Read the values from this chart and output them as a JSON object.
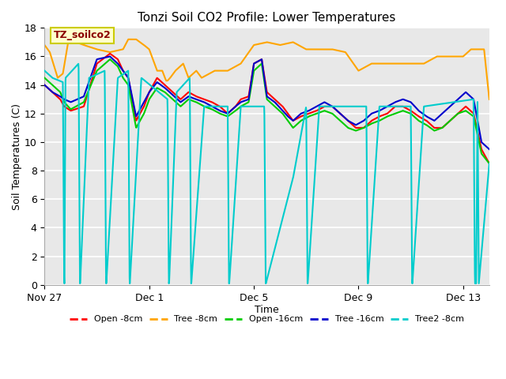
{
  "title": "Tonzi Soil CO2 Profile: Lower Temperatures",
  "xlabel": "Time",
  "ylabel": "Soil Temperatures (C)",
  "ylim": [
    0,
    18
  ],
  "xlim": [
    0,
    17
  ],
  "annotation_text": "TZ_soilco2",
  "annotation_color": "#8B0000",
  "annotation_bg": "#FFFFCC",
  "annotation_border": "#CCCC00",
  "bg_color": "#E8E8E8",
  "series": [
    {
      "label": "Open -8cm",
      "color": "#FF0000"
    },
    {
      "label": "Tree -8cm",
      "color": "#FFA500"
    },
    {
      "label": "Open -16cm",
      "color": "#00CC00"
    },
    {
      "label": "Tree -16cm",
      "color": "#0000CC"
    },
    {
      "label": "Tree2 -8cm",
      "color": "#00CCCC"
    }
  ],
  "xtick_labels": [
    "Nov 27",
    "Dec 1",
    "Dec 5",
    "Dec 9",
    "Dec 13"
  ],
  "xtick_positions": [
    0,
    4,
    8,
    12,
    16
  ],
  "ytick_positions": [
    0,
    2,
    4,
    6,
    8,
    10,
    12,
    14,
    16,
    18
  ],
  "grid_color": "#FFFFFF",
  "cyan_t": [
    0,
    0.3,
    0.7,
    0.75,
    0.76,
    0.8,
    1.3,
    1.35,
    1.36,
    1.7,
    2.3,
    2.35,
    2.36,
    2.8,
    3.2,
    3.25,
    3.26,
    3.7,
    4.7,
    4.75,
    4.76,
    5.05,
    5.55,
    5.6,
    5.61,
    6.1,
    7.0,
    7.05,
    7.06,
    7.5,
    8.4,
    8.45,
    8.46,
    9.5,
    10.0,
    10.05,
    10.06,
    10.5,
    12.3,
    12.35,
    12.36,
    12.8,
    14.0,
    14.05,
    14.06,
    14.5,
    16.4,
    16.45,
    16.5,
    16.55,
    16.6,
    17
  ],
  "cyan_v": [
    15,
    14.5,
    14.2,
    0.1,
    0.1,
    14.5,
    15.5,
    0.1,
    0.1,
    14.5,
    15,
    0.1,
    0.1,
    14.5,
    15,
    0.1,
    0.1,
    14.5,
    13,
    0.1,
    0.1,
    13.5,
    14.5,
    0.1,
    0.1,
    12.5,
    12.5,
    0.1,
    0.1,
    12.5,
    12.5,
    0.1,
    0.1,
    7.5,
    12.5,
    0.1,
    0.1,
    12.5,
    12.5,
    0.1,
    0.1,
    12.5,
    12.5,
    0.1,
    0.1,
    12.5,
    13,
    0.1,
    0.1,
    13,
    0.1,
    8.5
  ],
  "orange_t": [
    0,
    0.2,
    0.5,
    0.7,
    0.9,
    1.0,
    1.2,
    1.5,
    2.0,
    2.5,
    3.0,
    3.2,
    3.5,
    3.8,
    4.0,
    4.3,
    4.5,
    4.6,
    4.65,
    4.7,
    4.8,
    5.0,
    5.3,
    5.5,
    5.8,
    6.0,
    6.5,
    7.0,
    7.5,
    8.0,
    8.5,
    9.0,
    9.5,
    10.0,
    10.5,
    11.0,
    11.5,
    12.0,
    12.5,
    13.0,
    13.5,
    14.0,
    14.5,
    15.0,
    15.5,
    16.0,
    16.3,
    16.5,
    16.8,
    17.0
  ],
  "orange_v": [
    16.8,
    16.3,
    14.5,
    14.8,
    17.0,
    17.2,
    17.0,
    16.8,
    16.5,
    16.3,
    16.5,
    17.2,
    17.2,
    16.8,
    16.5,
    15.0,
    15.0,
    14.5,
    14.3,
    14.3,
    14.5,
    15.0,
    15.5,
    14.5,
    15.0,
    14.5,
    15.0,
    15.0,
    15.5,
    16.8,
    17.0,
    16.8,
    17.0,
    16.5,
    16.5,
    16.5,
    16.3,
    15.0,
    15.5,
    15.5,
    15.5,
    15.5,
    15.5,
    16.0,
    16.0,
    16.0,
    16.5,
    16.5,
    16.5,
    13.0
  ],
  "red_t": [
    0,
    0.3,
    0.6,
    0.75,
    1.0,
    1.5,
    2.0,
    2.5,
    2.8,
    3.0,
    3.2,
    3.5,
    3.8,
    4.0,
    4.3,
    4.6,
    4.9,
    5.2,
    5.5,
    5.8,
    6.1,
    6.4,
    6.7,
    7.0,
    7.3,
    7.5,
    7.8,
    8.0,
    8.3,
    8.5,
    8.8,
    9.1,
    9.3,
    9.5,
    9.8,
    10.1,
    10.4,
    10.7,
    11.0,
    11.3,
    11.6,
    11.9,
    12.2,
    12.5,
    12.8,
    13.1,
    13.4,
    13.7,
    14.0,
    14.3,
    14.6,
    14.9,
    15.2,
    15.5,
    15.8,
    16.1,
    16.4,
    16.7,
    17.0
  ],
  "red_v": [
    14,
    13.5,
    13,
    12.5,
    12.2,
    12.5,
    15.5,
    16.2,
    15.8,
    15.0,
    14.5,
    11.5,
    12.5,
    13.5,
    14.5,
    14.0,
    13.5,
    13.0,
    13.5,
    13.2,
    13.0,
    12.8,
    12.5,
    12.0,
    12.5,
    13.0,
    13.2,
    15.5,
    15.8,
    13.5,
    13.0,
    12.5,
    12.0,
    11.5,
    11.8,
    12.0,
    12.2,
    12.5,
    12.5,
    12.0,
    11.5,
    11.0,
    11.0,
    11.5,
    11.8,
    12.0,
    12.5,
    12.5,
    12.2,
    11.8,
    11.5,
    11.0,
    11.0,
    11.5,
    12.0,
    12.5,
    12.0,
    9.5,
    8.5
  ],
  "green_t": [
    0,
    0.3,
    0.6,
    0.75,
    1.0,
    1.5,
    2.0,
    2.5,
    2.8,
    3.0,
    3.2,
    3.5,
    3.8,
    4.0,
    4.3,
    4.6,
    4.9,
    5.2,
    5.5,
    5.8,
    6.1,
    6.4,
    6.7,
    7.0,
    7.3,
    7.5,
    7.8,
    8.0,
    8.3,
    8.5,
    8.8,
    9.1,
    9.3,
    9.5,
    9.8,
    10.1,
    10.4,
    10.7,
    11.0,
    11.3,
    11.6,
    11.9,
    12.2,
    12.5,
    12.8,
    13.1,
    13.4,
    13.7,
    14.0,
    14.3,
    14.6,
    14.9,
    15.2,
    15.5,
    15.8,
    16.1,
    16.4,
    16.7,
    17.0
  ],
  "green_v": [
    14.5,
    14.0,
    13.5,
    12.8,
    12.3,
    12.8,
    15.0,
    15.8,
    15.3,
    14.5,
    14.0,
    11.0,
    12.0,
    13.0,
    13.8,
    13.5,
    13.0,
    12.5,
    13.0,
    12.8,
    12.5,
    12.3,
    12.0,
    11.8,
    12.2,
    12.5,
    12.8,
    15.0,
    15.5,
    13.0,
    12.5,
    12.0,
    11.5,
    11.0,
    11.5,
    11.8,
    12.0,
    12.2,
    12.0,
    11.5,
    11.0,
    10.8,
    11.0,
    11.3,
    11.5,
    11.8,
    12.0,
    12.2,
    12.0,
    11.5,
    11.2,
    10.8,
    11.0,
    11.5,
    12.0,
    12.2,
    11.8,
    9.2,
    8.5
  ],
  "blue_t": [
    0,
    0.3,
    0.6,
    0.75,
    1.0,
    1.5,
    2.0,
    2.5,
    2.8,
    3.0,
    3.2,
    3.5,
    3.8,
    4.0,
    4.3,
    4.6,
    4.9,
    5.2,
    5.5,
    5.8,
    6.1,
    6.4,
    6.7,
    7.0,
    7.3,
    7.5,
    7.8,
    8.0,
    8.3,
    8.5,
    8.8,
    9.1,
    9.3,
    9.5,
    9.8,
    10.1,
    10.4,
    10.7,
    11.0,
    11.3,
    11.6,
    11.9,
    12.2,
    12.5,
    12.8,
    13.1,
    13.4,
    13.7,
    14.0,
    14.3,
    14.6,
    14.9,
    15.2,
    15.5,
    15.8,
    16.1,
    16.4,
    16.7,
    17.0
  ],
  "blue_v": [
    14,
    13.5,
    13.2,
    13.0,
    12.8,
    13.2,
    15.8,
    16.0,
    15.5,
    15.0,
    14.5,
    11.8,
    12.8,
    13.5,
    14.2,
    13.8,
    13.3,
    12.8,
    13.2,
    13.0,
    12.8,
    12.5,
    12.2,
    12.0,
    12.5,
    12.8,
    13.0,
    15.5,
    15.8,
    13.2,
    12.8,
    12.2,
    11.8,
    11.5,
    12.0,
    12.2,
    12.5,
    12.8,
    12.5,
    12.0,
    11.5,
    11.2,
    11.5,
    12.0,
    12.2,
    12.5,
    12.8,
    13.0,
    12.8,
    12.2,
    11.8,
    11.5,
    12.0,
    12.5,
    13.0,
    13.5,
    13.0,
    10.0,
    9.5
  ]
}
